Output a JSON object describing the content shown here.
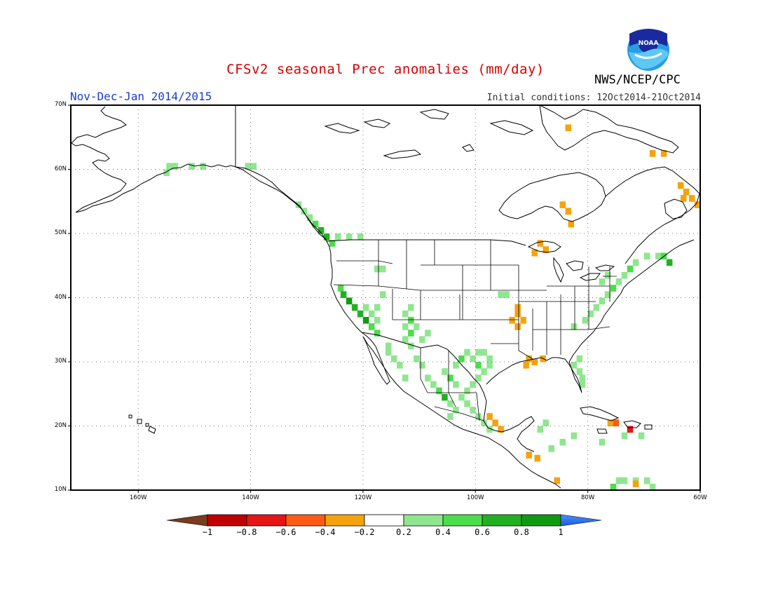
{
  "title": "CFSv2 seasonal Prec anomalies (mm/day)",
  "organization": "NWS/NCEP/CPC",
  "logo_text": "NOAA",
  "period": "Nov-Dec-Jan 2014/2015",
  "initial_conditions": "Initial conditions: 12Oct2014-21Oct2014",
  "map": {
    "lon_range": [
      -172,
      -60
    ],
    "lat_range": [
      10,
      70
    ],
    "lat_ticks": [
      {
        "value": 70,
        "label": "70N"
      },
      {
        "value": 60,
        "label": "60N"
      },
      {
        "value": 50,
        "label": "50N"
      },
      {
        "value": 40,
        "label": "40N"
      },
      {
        "value": 30,
        "label": "30N"
      },
      {
        "value": 20,
        "label": "20N"
      },
      {
        "value": 10,
        "label": "10N"
      }
    ],
    "lon_ticks": [
      {
        "value": -160,
        "label": "160W"
      },
      {
        "value": -140,
        "label": "140W"
      },
      {
        "value": -120,
        "label": "120W"
      },
      {
        "value": -100,
        "label": "100W"
      },
      {
        "value": -80,
        "label": "80W"
      },
      {
        "value": -60,
        "label": "60W"
      }
    ],
    "colors": {
      "wet_light": "#8fe68f",
      "wet_medium": "#4cdc4c",
      "wet_strong": "#22b022",
      "wet_stronger": "#119a11",
      "dry_light": "#f5a30c",
      "dry_medium": "#ff5a14",
      "dry_strong": "#e61414"
    },
    "anomaly_cells": [
      {
        "lat": 60.5,
        "lon": -154.5,
        "level": "wet_light"
      },
      {
        "lat": 60.5,
        "lon": -153.5,
        "level": "wet_light"
      },
      {
        "lat": 59.5,
        "lon": -155.0,
        "level": "wet_light"
      },
      {
        "lat": 60.5,
        "lon": -150.5,
        "level": "wet_light"
      },
      {
        "lat": 60.5,
        "lon": -148.5,
        "level": "wet_light"
      },
      {
        "lat": 60.5,
        "lon": -140.5,
        "level": "wet_light"
      },
      {
        "lat": 60.5,
        "lon": -139.5,
        "level": "wet_light"
      },
      {
        "lat": 54.5,
        "lon": -131.5,
        "level": "wet_light"
      },
      {
        "lat": 53.5,
        "lon": -130.5,
        "level": "wet_light"
      },
      {
        "lat": 52.5,
        "lon": -129.5,
        "level": "wet_light"
      },
      {
        "lat": 51.5,
        "lon": -128.5,
        "level": "wet_medium"
      },
      {
        "lat": 50.5,
        "lon": -127.5,
        "level": "wet_strong"
      },
      {
        "lat": 49.5,
        "lon": -126.5,
        "level": "wet_strong"
      },
      {
        "lat": 48.5,
        "lon": -125.5,
        "level": "wet_medium"
      },
      {
        "lat": 49.5,
        "lon": -124.5,
        "level": "wet_light"
      },
      {
        "lat": 49.5,
        "lon": -122.5,
        "level": "wet_light"
      },
      {
        "lat": 49.5,
        "lon": -120.5,
        "level": "wet_light"
      },
      {
        "lat": 44.5,
        "lon": -117.5,
        "level": "wet_light"
      },
      {
        "lat": 44.5,
        "lon": -116.5,
        "level": "wet_light"
      },
      {
        "lat": 41.5,
        "lon": -124.0,
        "level": "wet_medium"
      },
      {
        "lat": 40.5,
        "lon": -123.5,
        "level": "wet_strong"
      },
      {
        "lat": 39.5,
        "lon": -122.5,
        "level": "wet_stronger"
      },
      {
        "lat": 38.5,
        "lon": -121.5,
        "level": "wet_strong"
      },
      {
        "lat": 37.5,
        "lon": -120.5,
        "level": "wet_strong"
      },
      {
        "lat": 36.5,
        "lon": -119.5,
        "level": "wet_stronger"
      },
      {
        "lat": 35.5,
        "lon": -118.5,
        "level": "wet_medium"
      },
      {
        "lat": 34.5,
        "lon": -117.5,
        "level": "wet_medium"
      },
      {
        "lat": 38.5,
        "lon": -119.5,
        "level": "wet_light"
      },
      {
        "lat": 37.5,
        "lon": -118.5,
        "level": "wet_light"
      },
      {
        "lat": 36.5,
        "lon": -117.5,
        "level": "wet_light"
      },
      {
        "lat": 38.5,
        "lon": -117.5,
        "level": "wet_light"
      },
      {
        "lat": 40.5,
        "lon": -116.5,
        "level": "wet_light"
      },
      {
        "lat": 37.5,
        "lon": -112.5,
        "level": "wet_light"
      },
      {
        "lat": 38.5,
        "lon": -111.5,
        "level": "wet_light"
      },
      {
        "lat": 36.5,
        "lon": -111.5,
        "level": "wet_medium"
      },
      {
        "lat": 35.5,
        "lon": -112.5,
        "level": "wet_light"
      },
      {
        "lat": 35.5,
        "lon": -110.5,
        "level": "wet_light"
      },
      {
        "lat": 34.5,
        "lon": -111.5,
        "level": "wet_medium"
      },
      {
        "lat": 33.5,
        "lon": -112.5,
        "level": "wet_light"
      },
      {
        "lat": 32.5,
        "lon": -111.5,
        "level": "wet_light"
      },
      {
        "lat": 33.5,
        "lon": -109.5,
        "level": "wet_light"
      },
      {
        "lat": 34.5,
        "lon": -108.5,
        "level": "wet_light"
      },
      {
        "lat": 32.5,
        "lon": -115.5,
        "level": "wet_light"
      },
      {
        "lat": 31.5,
        "lon": -115.5,
        "level": "wet_light"
      },
      {
        "lat": 30.5,
        "lon": -114.5,
        "level": "wet_light"
      },
      {
        "lat": 29.5,
        "lon": -113.5,
        "level": "wet_light"
      },
      {
        "lat": 27.5,
        "lon": -112.5,
        "level": "wet_light"
      },
      {
        "lat": 30.5,
        "lon": -110.5,
        "level": "wet_light"
      },
      {
        "lat": 29.5,
        "lon": -109.5,
        "level": "wet_light"
      },
      {
        "lat": 27.5,
        "lon": -108.5,
        "level": "wet_light"
      },
      {
        "lat": 26.5,
        "lon": -107.5,
        "level": "wet_light"
      },
      {
        "lat": 25.5,
        "lon": -106.5,
        "level": "wet_medium"
      },
      {
        "lat": 24.5,
        "lon": -105.5,
        "level": "wet_strong"
      },
      {
        "lat": 23.5,
        "lon": -104.5,
        "level": "wet_light"
      },
      {
        "lat": 22.5,
        "lon": -103.5,
        "level": "wet_light"
      },
      {
        "lat": 21.5,
        "lon": -104.5,
        "level": "wet_light"
      },
      {
        "lat": 28.5,
        "lon": -105.5,
        "level": "wet_light"
      },
      {
        "lat": 27.5,
        "lon": -104.5,
        "level": "wet_medium"
      },
      {
        "lat": 26.5,
        "lon": -103.5,
        "level": "wet_light"
      },
      {
        "lat": 29.5,
        "lon": -103.5,
        "level": "wet_light"
      },
      {
        "lat": 30.5,
        "lon": -102.5,
        "level": "wet_medium"
      },
      {
        "lat": 31.5,
        "lon": -101.5,
        "level": "wet_light"
      },
      {
        "lat": 30.5,
        "lon": -100.5,
        "level": "wet_light"
      },
      {
        "lat": 29.5,
        "lon": -99.5,
        "level": "wet_medium"
      },
      {
        "lat": 28.5,
        "lon": -98.5,
        "level": "wet_light"
      },
      {
        "lat": 27.5,
        "lon": -99.5,
        "level": "wet_light"
      },
      {
        "lat": 26.5,
        "lon": -100.5,
        "level": "wet_light"
      },
      {
        "lat": 25.5,
        "lon": -101.5,
        "level": "wet_light"
      },
      {
        "lat": 24.5,
        "lon": -102.5,
        "level": "wet_light"
      },
      {
        "lat": 23.5,
        "lon": -101.5,
        "level": "wet_light"
      },
      {
        "lat": 22.5,
        "lon": -100.5,
        "level": "wet_light"
      },
      {
        "lat": 21.5,
        "lon": -99.5,
        "level": "wet_light"
      },
      {
        "lat": 20.5,
        "lon": -98.5,
        "level": "wet_light"
      },
      {
        "lat": 19.5,
        "lon": -97.5,
        "level": "wet_light"
      },
      {
        "lat": 29.5,
        "lon": -97.5,
        "level": "wet_light"
      },
      {
        "lat": 30.5,
        "lon": -97.5,
        "level": "wet_light"
      },
      {
        "lat": 31.5,
        "lon": -98.5,
        "level": "wet_light"
      },
      {
        "lat": 31.5,
        "lon": -99.5,
        "level": "wet_light"
      },
      {
        "lat": 40.5,
        "lon": -95.5,
        "level": "wet_light"
      },
      {
        "lat": 40.5,
        "lon": -94.5,
        "level": "wet_light"
      },
      {
        "lat": 19.5,
        "lon": -88.5,
        "level": "wet_light"
      },
      {
        "lat": 20.5,
        "lon": -87.5,
        "level": "wet_light"
      },
      {
        "lat": 16.5,
        "lon": -86.5,
        "level": "wet_light"
      },
      {
        "lat": 17.5,
        "lon": -84.5,
        "level": "wet_light"
      },
      {
        "lat": 18.5,
        "lon": -82.5,
        "level": "wet_light"
      },
      {
        "lat": 17.5,
        "lon": -77.5,
        "level": "wet_light"
      },
      {
        "lat": 18.5,
        "lon": -73.5,
        "level": "wet_light"
      },
      {
        "lat": 18.5,
        "lon": -70.5,
        "level": "wet_light"
      },
      {
        "lat": 11.5,
        "lon": -74.5,
        "level": "wet_light"
      },
      {
        "lat": 11.5,
        "lon": -73.5,
        "level": "wet_light"
      },
      {
        "lat": 11.5,
        "lon": -71.5,
        "level": "wet_light"
      },
      {
        "lat": 11.5,
        "lon": -69.5,
        "level": "wet_light"
      },
      {
        "lat": 10.5,
        "lon": -68.5,
        "level": "wet_light"
      },
      {
        "lat": 10.5,
        "lon": -75.5,
        "level": "wet_medium"
      },
      {
        "lat": 29.5,
        "lon": -82.5,
        "level": "wet_light"
      },
      {
        "lat": 28.5,
        "lon": -81.5,
        "level": "wet_light"
      },
      {
        "lat": 27.5,
        "lon": -81.0,
        "level": "wet_light"
      },
      {
        "lat": 26.5,
        "lon": -81.0,
        "level": "wet_light"
      },
      {
        "lat": 30.5,
        "lon": -81.5,
        "level": "wet_light"
      },
      {
        "lat": 36.5,
        "lon": -80.5,
        "level": "wet_light"
      },
      {
        "lat": 37.5,
        "lon": -79.5,
        "level": "wet_light"
      },
      {
        "lat": 38.5,
        "lon": -78.5,
        "level": "wet_light"
      },
      {
        "lat": 39.5,
        "lon": -77.5,
        "level": "wet_light"
      },
      {
        "lat": 40.5,
        "lon": -76.5,
        "level": "wet_light"
      },
      {
        "lat": 41.5,
        "lon": -75.5,
        "level": "wet_medium"
      },
      {
        "lat": 42.5,
        "lon": -74.5,
        "level": "wet_light"
      },
      {
        "lat": 43.5,
        "lon": -73.5,
        "level": "wet_light"
      },
      {
        "lat": 44.5,
        "lon": -72.5,
        "level": "wet_medium"
      },
      {
        "lat": 45.5,
        "lon": -71.5,
        "level": "wet_light"
      },
      {
        "lat": 46.5,
        "lon": -69.5,
        "level": "wet_light"
      },
      {
        "lat": 46.5,
        "lon": -67.5,
        "level": "wet_light"
      },
      {
        "lat": 46.5,
        "lon": -66.5,
        "level": "wet_medium"
      },
      {
        "lat": 45.5,
        "lon": -65.5,
        "level": "wet_strong"
      },
      {
        "lat": 42.5,
        "lon": -77.5,
        "level": "wet_light"
      },
      {
        "lat": 43.5,
        "lon": -76.5,
        "level": "wet_light"
      },
      {
        "lat": 35.5,
        "lon": -82.5,
        "level": "wet_light"
      },
      {
        "lat": 66.5,
        "lon": -83.5,
        "level": "dry_light"
      },
      {
        "lat": 62.5,
        "lon": -68.5,
        "level": "dry_light"
      },
      {
        "lat": 62.5,
        "lon": -66.5,
        "level": "dry_light"
      },
      {
        "lat": 57.5,
        "lon": -63.5,
        "level": "dry_light"
      },
      {
        "lat": 56.5,
        "lon": -62.5,
        "level": "dry_light"
      },
      {
        "lat": 55.5,
        "lon": -61.5,
        "level": "dry_light"
      },
      {
        "lat": 54.5,
        "lon": -60.5,
        "level": "dry_light"
      },
      {
        "lat": 55.5,
        "lon": -63.0,
        "level": "dry_light"
      },
      {
        "lat": 54.5,
        "lon": -84.5,
        "level": "dry_light"
      },
      {
        "lat": 53.5,
        "lon": -83.5,
        "level": "dry_light"
      },
      {
        "lat": 51.5,
        "lon": -83.0,
        "level": "dry_light"
      },
      {
        "lat": 48.5,
        "lon": -88.5,
        "level": "dry_light"
      },
      {
        "lat": 47.5,
        "lon": -87.5,
        "level": "dry_light"
      },
      {
        "lat": 47.0,
        "lon": -89.5,
        "level": "dry_light"
      },
      {
        "lat": 38.5,
        "lon": -92.5,
        "level": "dry_light"
      },
      {
        "lat": 37.5,
        "lon": -92.5,
        "level": "dry_light"
      },
      {
        "lat": 36.5,
        "lon": -93.5,
        "level": "dry_light"
      },
      {
        "lat": 36.5,
        "lon": -91.5,
        "level": "dry_light"
      },
      {
        "lat": 35.5,
        "lon": -92.5,
        "level": "dry_light"
      },
      {
        "lat": 30.5,
        "lon": -90.5,
        "level": "dry_light"
      },
      {
        "lat": 30.0,
        "lon": -89.5,
        "level": "dry_light"
      },
      {
        "lat": 30.5,
        "lon": -88.0,
        "level": "dry_light"
      },
      {
        "lat": 29.5,
        "lon": -91.0,
        "level": "dry_light"
      },
      {
        "lat": 21.5,
        "lon": -97.5,
        "level": "dry_light"
      },
      {
        "lat": 20.5,
        "lon": -96.5,
        "level": "dry_light"
      },
      {
        "lat": 19.5,
        "lon": -95.5,
        "level": "dry_light"
      },
      {
        "lat": 15.5,
        "lon": -90.5,
        "level": "dry_light"
      },
      {
        "lat": 15.0,
        "lon": -89.0,
        "level": "dry_light"
      },
      {
        "lat": 11.5,
        "lon": -85.5,
        "level": "dry_light"
      },
      {
        "lat": 20.5,
        "lon": -76.0,
        "level": "dry_light"
      },
      {
        "lat": 20.5,
        "lon": -75.0,
        "level": "dry_medium"
      },
      {
        "lat": 19.5,
        "lon": -72.5,
        "level": "dry_strong"
      },
      {
        "lat": 11.0,
        "lon": -71.5,
        "level": "dry_light"
      }
    ]
  },
  "colorbar": {
    "labels": [
      "-1",
      "-0.8",
      "-0.6",
      "-0.4",
      "-0.2",
      "0.2",
      "0.4",
      "0.6",
      "0.8",
      "1"
    ],
    "colors": [
      "#7a3c1e",
      "#c00000",
      "#e61414",
      "#ff5a14",
      "#f5a30c",
      "#ffffff",
      "#8fe68f",
      "#4cdc4c",
      "#22b022",
      "#119a11",
      "#1e6ef0"
    ]
  }
}
